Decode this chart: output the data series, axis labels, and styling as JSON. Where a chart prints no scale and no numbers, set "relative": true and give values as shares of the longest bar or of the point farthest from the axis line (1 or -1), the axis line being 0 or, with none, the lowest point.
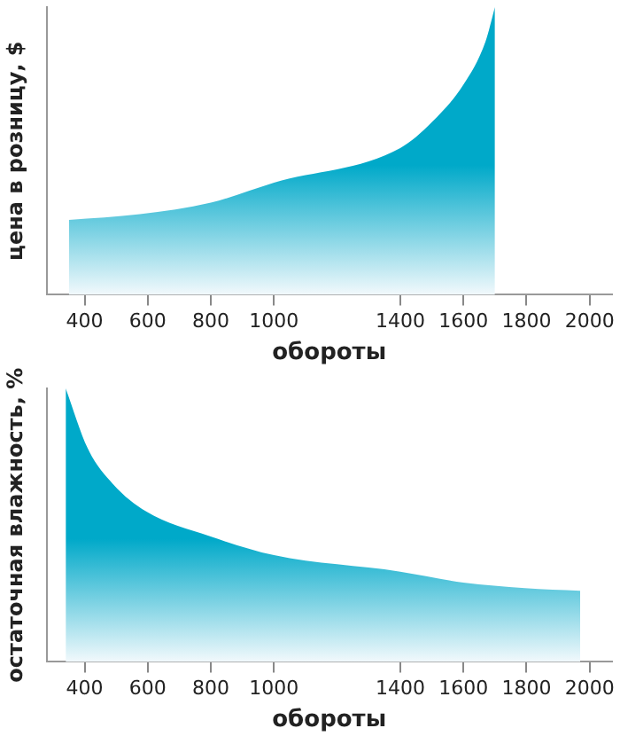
{
  "chart_data": [
    {
      "type": "area",
      "relative": true,
      "ylabel": "цена в розницу, $",
      "xlabel": "обороты",
      "grid": false,
      "legend": false,
      "xlim": [
        280,
        2070
      ],
      "xticks": [
        400,
        600,
        800,
        1000,
        1400,
        1600,
        1800,
        2000
      ],
      "series": [
        {
          "color": "#00a9c9",
          "x": [
            350,
            575,
            800,
            1000,
            1400,
            1500,
            1600,
            1670,
            1700
          ],
          "values": [
            0.26,
            0.28,
            0.32,
            0.39,
            0.51,
            0.6,
            0.73,
            0.88,
            1
          ]
        }
      ]
    },
    {
      "type": "area",
      "relative": true,
      "ylabel": "остаточная влажность, %",
      "xlabel": "обороты",
      "grid": false,
      "legend": false,
      "xlim": [
        280,
        2070
      ],
      "xticks": [
        400,
        600,
        800,
        1000,
        1400,
        1600,
        1800,
        2000
      ],
      "series": [
        {
          "color": "#00a9c9",
          "x": [
            340,
            410,
            490,
            595,
            795,
            1000,
            1400,
            1600,
            1795,
            1970
          ],
          "values": [
            1,
            0.78,
            0.65,
            0.55,
            0.46,
            0.39,
            0.33,
            0.29,
            0.27,
            0.26
          ]
        }
      ]
    }
  ]
}
